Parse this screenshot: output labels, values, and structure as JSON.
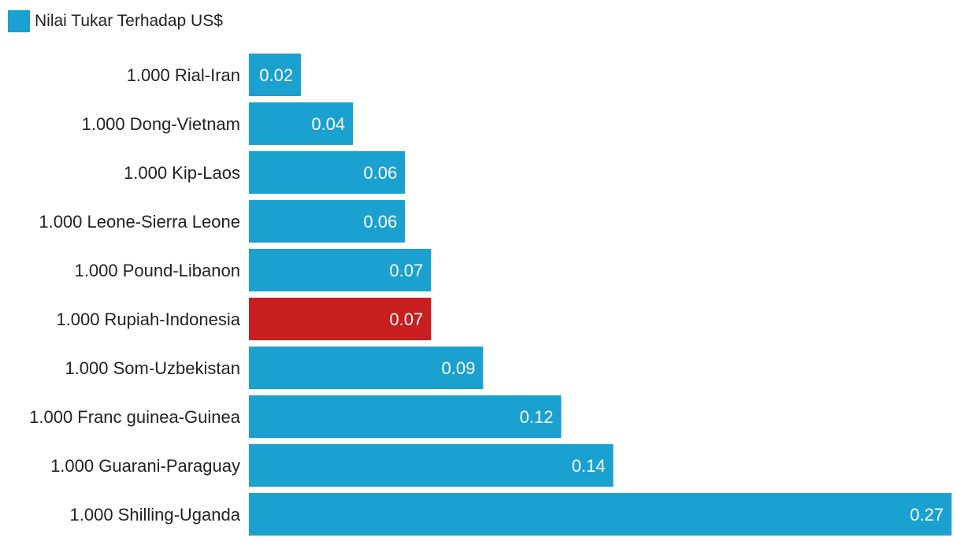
{
  "chart_data": {
    "type": "bar",
    "orientation": "horizontal",
    "legend": {
      "label": "Nilai Tukar Terhadap US$",
      "placement": "top-left"
    },
    "categories": [
      "1.000 Rial-Iran",
      "1.000 Dong-Vietnam",
      "1.000 Kip-Laos",
      "1.000 Leone-Sierra Leone",
      "1.000 Pound-Libanon",
      "1.000 Rupiah-Indonesia",
      "1.000 Som-Uzbekistan",
      "1.000 Franc guinea-Guinea",
      "1.000 Guarani-Paraguay",
      "1.000 Shilling-Uganda"
    ],
    "values": [
      0.02,
      0.04,
      0.06,
      0.06,
      0.07,
      0.07,
      0.09,
      0.12,
      0.14,
      0.27
    ],
    "value_labels": [
      "0.02",
      "0.04",
      "0.06",
      "0.06",
      "0.07",
      "0.07",
      "0.09",
      "0.12",
      "0.14",
      "0.27"
    ],
    "xlim": [
      0,
      0.27
    ],
    "grid": false,
    "colors": {
      "default": "#1ba1cf",
      "highlight": "#c81e1e"
    },
    "highlight_category": "1.000 Rupiah-Indonesia"
  }
}
